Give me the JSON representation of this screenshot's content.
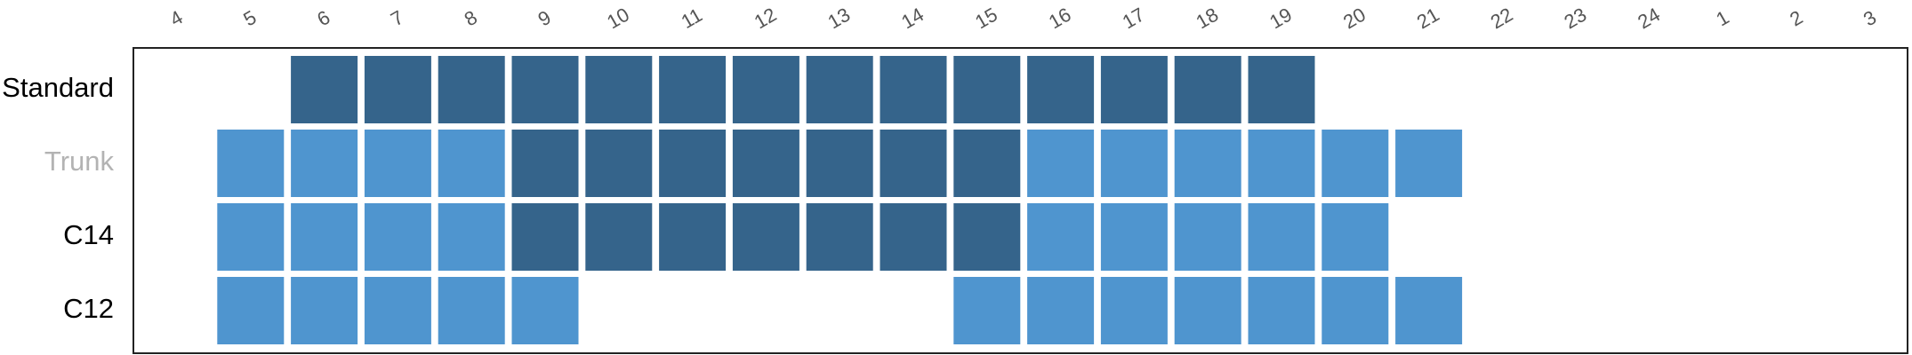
{
  "chart_data": {
    "type": "heatmap",
    "title": "",
    "xlabel": "",
    "ylabel": "",
    "grid": false,
    "legend": "none",
    "x": [
      "4",
      "5",
      "6",
      "7",
      "8",
      "9",
      "10",
      "11",
      "12",
      "13",
      "14",
      "15",
      "16",
      "17",
      "18",
      "19",
      "20",
      "21",
      "22",
      "23",
      "24",
      "1",
      "2",
      "3"
    ],
    "rows": [
      {
        "label": "Standard",
        "label_color": "#000000",
        "cells": {
          "6": "dark",
          "7": "dark",
          "8": "dark",
          "9": "dark",
          "10": "dark",
          "11": "dark",
          "12": "dark",
          "13": "dark",
          "14": "dark",
          "15": "dark",
          "16": "dark",
          "17": "dark",
          "18": "dark",
          "19": "dark"
        }
      },
      {
        "label": "Trunk",
        "label_color": "#b3b3b3",
        "cells": {
          "5": "light",
          "6": "light",
          "7": "light",
          "8": "light",
          "9": "dark",
          "10": "dark",
          "11": "dark",
          "12": "dark",
          "13": "dark",
          "14": "dark",
          "15": "dark",
          "16": "light",
          "17": "light",
          "18": "light",
          "19": "light",
          "20": "light",
          "21": "light"
        }
      },
      {
        "label": "C14",
        "label_color": "#000000",
        "cells": {
          "5": "light",
          "6": "light",
          "7": "light",
          "8": "light",
          "9": "dark",
          "10": "dark",
          "11": "dark",
          "12": "dark",
          "13": "dark",
          "14": "dark",
          "15": "dark",
          "16": "light",
          "17": "light",
          "18": "light",
          "19": "light",
          "20": "light"
        }
      },
      {
        "label": "C12",
        "label_color": "#000000",
        "cells": {
          "5": "light",
          "6": "light",
          "7": "light",
          "8": "light",
          "9": "light",
          "15": "light",
          "16": "light",
          "17": "light",
          "18": "light",
          "19": "light",
          "20": "light",
          "21": "light"
        }
      }
    ],
    "colors": {
      "dark": "#35648b",
      "light": "#4f95cf",
      "frame": "#222222",
      "tick_text": "#555555"
    }
  }
}
